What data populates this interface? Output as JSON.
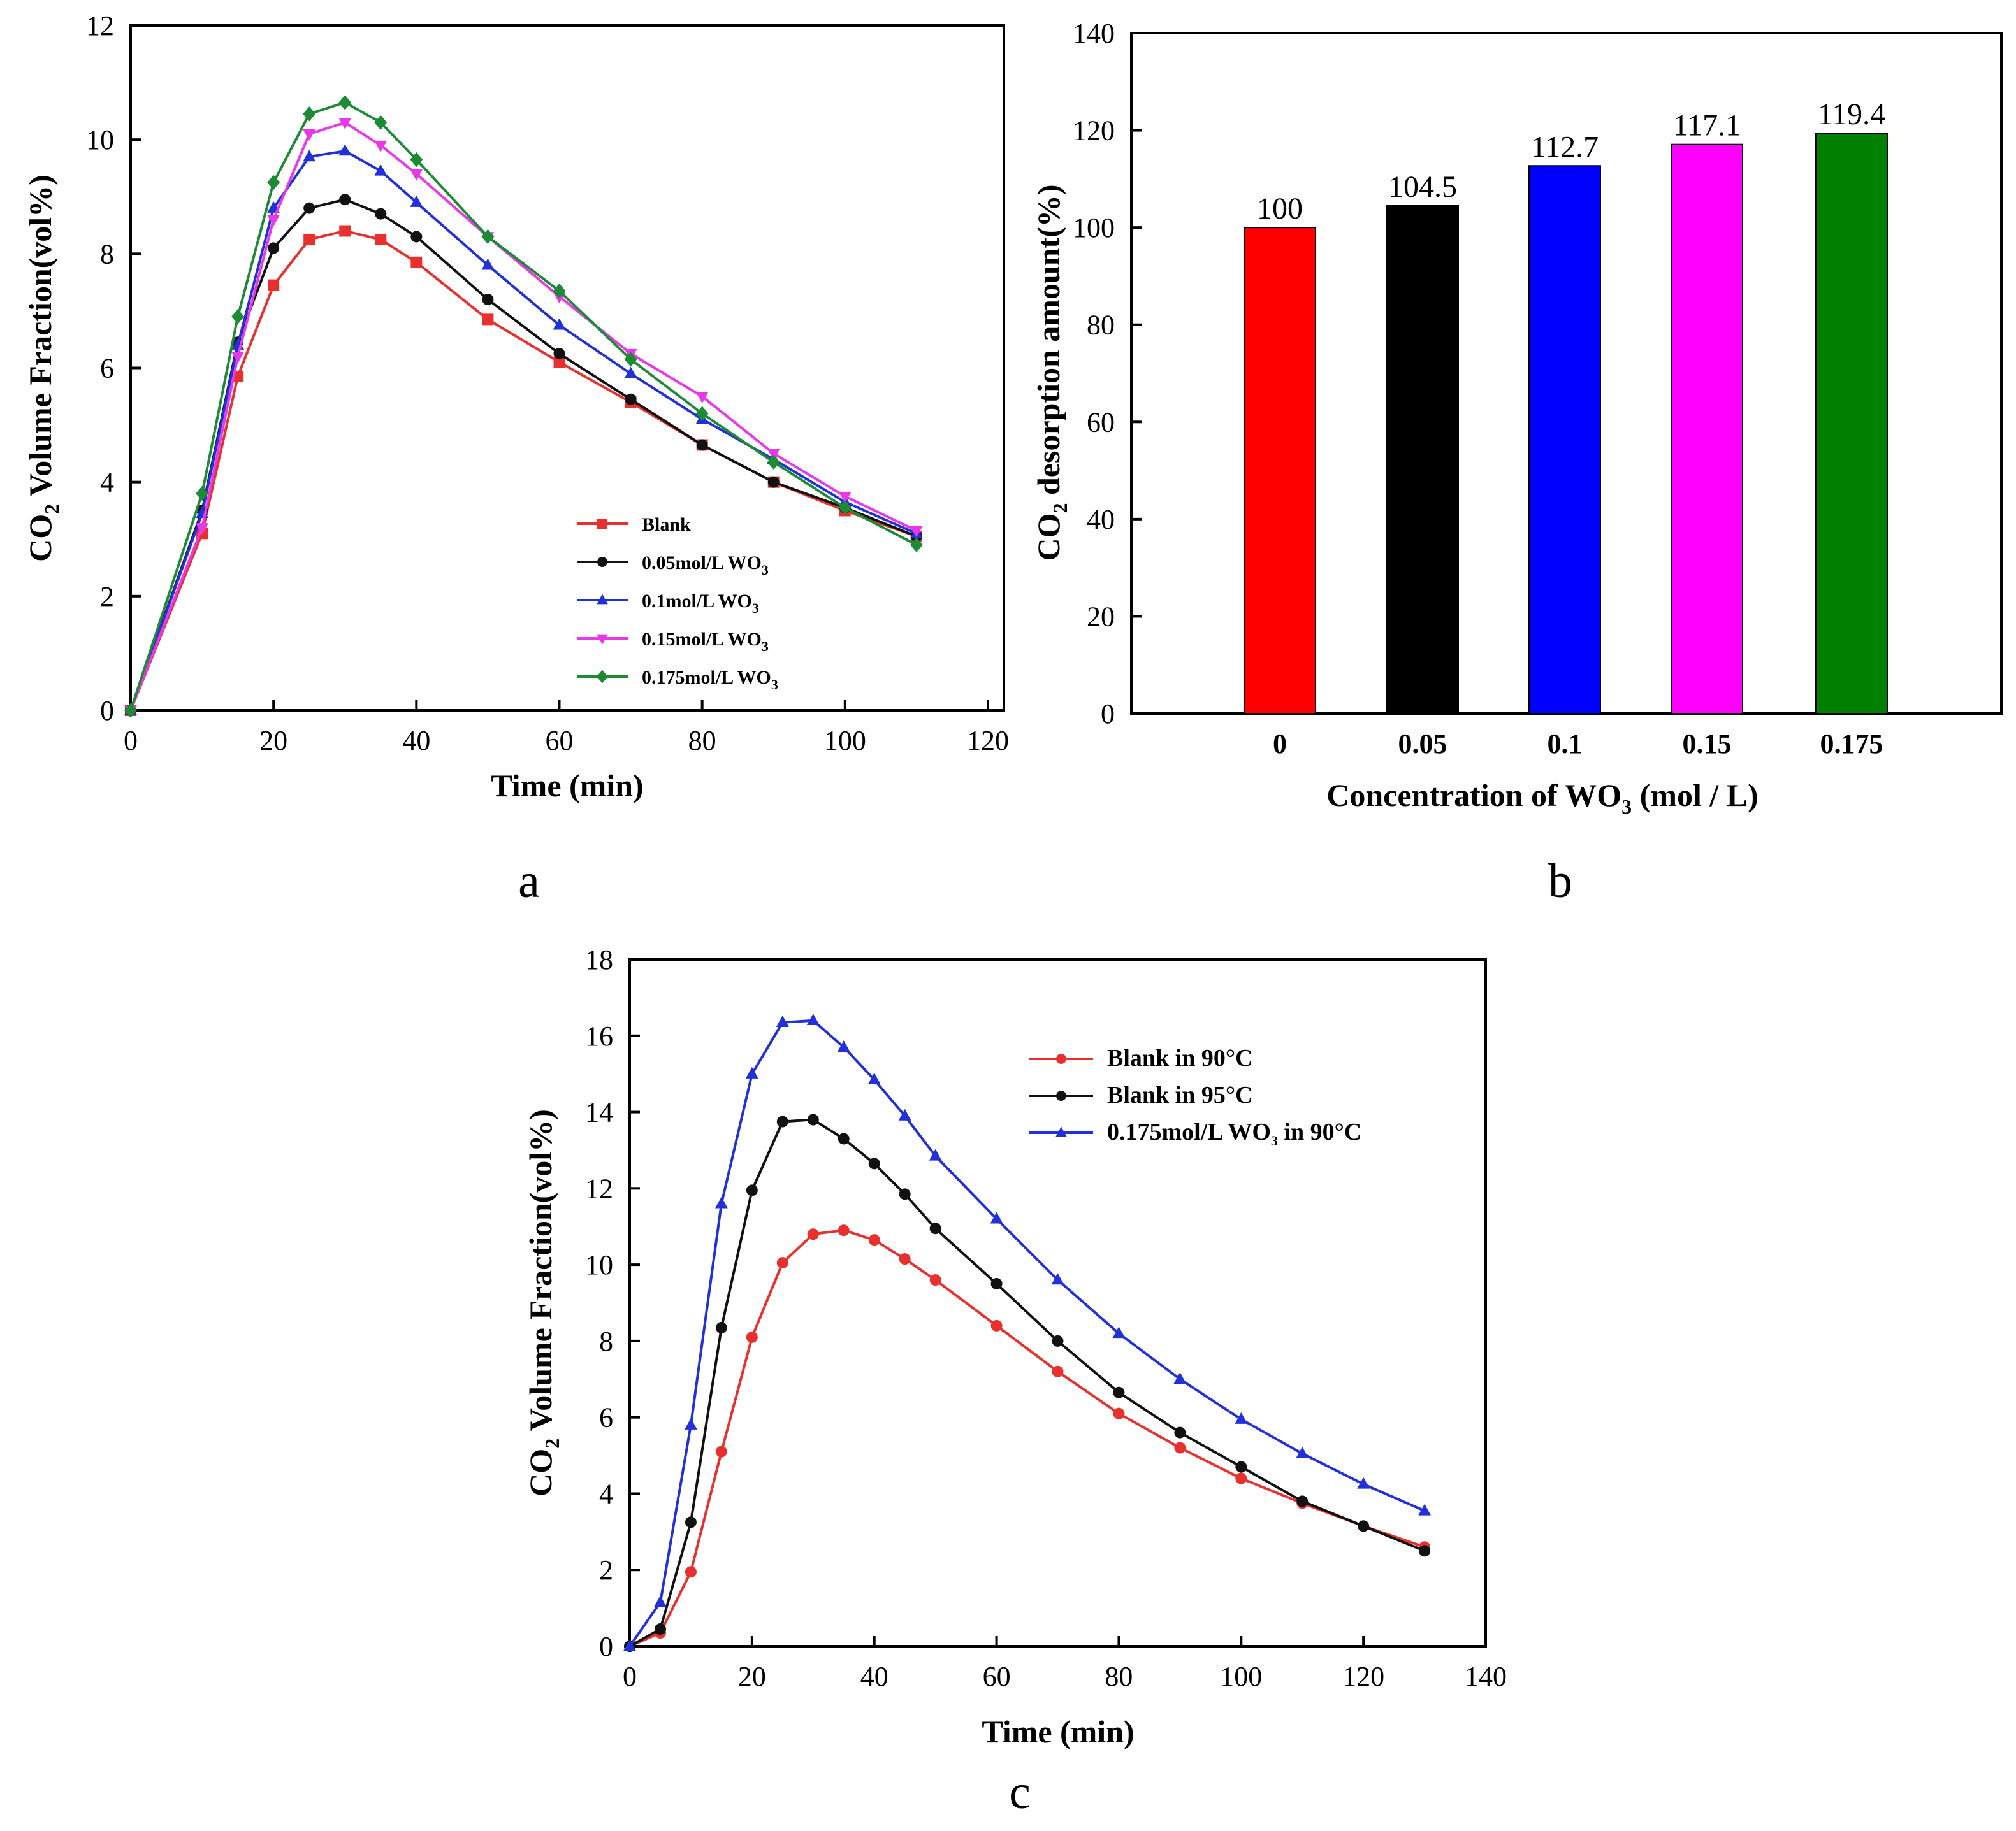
{
  "panel_labels": [
    "a",
    "b",
    "c"
  ],
  "chart_data": [
    {
      "id": "a",
      "type": "line",
      "title": "",
      "xlabel": "Time (min)",
      "ylabel_prefix": "CO",
      "ylabel_sub": "2",
      "ylabel_suffix": " Volume Fraction(vol%)",
      "xlim": [
        0,
        120
      ],
      "ylim": [
        0,
        12
      ],
      "xticks": [
        0,
        20,
        40,
        60,
        80,
        100,
        120
      ],
      "yticks": [
        0,
        2,
        4,
        6,
        8,
        10,
        12
      ],
      "grid": false,
      "legend_position": "lower-right",
      "x": [
        0,
        10,
        15,
        20,
        25,
        30,
        35,
        40,
        50,
        60,
        70,
        80,
        90,
        100,
        110
      ],
      "series": [
        {
          "name": "Blank",
          "name_main": "Blank",
          "name_sub": "",
          "color": "#e8302e",
          "marker": "square",
          "values": [
            0,
            3.1,
            5.85,
            7.45,
            8.25,
            8.4,
            8.25,
            7.85,
            6.85,
            6.1,
            5.4,
            4.65,
            4.0,
            3.5,
            3.05
          ]
        },
        {
          "name": "0.05mol/L WO3",
          "name_main": "0.05mol/L WO",
          "name_sub": "3",
          "color": "#111111",
          "marker": "circle",
          "values": [
            0,
            3.5,
            6.45,
            8.1,
            8.8,
            8.95,
            8.7,
            8.3,
            7.2,
            6.25,
            5.45,
            4.65,
            4.0,
            3.55,
            3.05
          ]
        },
        {
          "name": "0.1mol/L WO3",
          "name_main": "0.1mol/L WO",
          "name_sub": "3",
          "color": "#2130d8",
          "marker": "triangle-up",
          "values": [
            0,
            3.45,
            6.4,
            8.8,
            9.7,
            9.8,
            9.45,
            8.9,
            7.8,
            6.75,
            5.9,
            5.1,
            4.4,
            3.65,
            3.1
          ]
        },
        {
          "name": "0.15mol/L WO3",
          "name_main": "0.15mol/L WO",
          "name_sub": "3",
          "color": "#e838e8",
          "marker": "triangle-down",
          "values": [
            0,
            3.2,
            6.2,
            8.6,
            10.1,
            10.3,
            9.9,
            9.4,
            8.3,
            7.25,
            6.25,
            5.5,
            4.5,
            3.75,
            3.15
          ]
        },
        {
          "name": "0.175mol/L WO3",
          "name_main": "0.175mol/L WO",
          "name_sub": "3",
          "color": "#1d8a35",
          "marker": "diamond",
          "values": [
            0,
            3.8,
            6.9,
            9.25,
            10.45,
            10.65,
            10.3,
            9.65,
            8.3,
            7.35,
            6.15,
            5.2,
            4.35,
            3.55,
            2.9
          ]
        }
      ]
    },
    {
      "id": "b",
      "type": "bar",
      "title": "",
      "xlabel_prefix": "Concentration of WO",
      "xlabel_sub": "3",
      "xlabel_suffix": " (mol / L)",
      "ylabel_prefix": "CO",
      "ylabel_sub": "2",
      "ylabel_suffix": " desorption amount(%)",
      "ylim": [
        0,
        140
      ],
      "yticks": [
        0,
        20,
        40,
        60,
        80,
        100,
        120,
        140
      ],
      "grid": false,
      "categories": [
        "0",
        "0.05",
        "0.1",
        "0.15",
        "0.175"
      ],
      "values": [
        100,
        104.5,
        112.7,
        117.1,
        119.4
      ],
      "value_labels": [
        "100",
        "104.5",
        "112.7",
        "117.1",
        "119.4"
      ],
      "colors": [
        "#ff0000",
        "#000000",
        "#0000ff",
        "#ff00ff",
        "#008000"
      ]
    },
    {
      "id": "c",
      "type": "line",
      "title": "",
      "xlabel": "Time (min)",
      "ylabel_prefix": "CO",
      "ylabel_sub": "2",
      "ylabel_suffix": " Volume Fraction(vol%)",
      "xlim": [
        0,
        140
      ],
      "ylim": [
        0,
        18
      ],
      "xticks": [
        0,
        20,
        40,
        60,
        80,
        100,
        120,
        140
      ],
      "yticks": [
        0,
        2,
        4,
        6,
        8,
        10,
        12,
        14,
        16,
        18
      ],
      "grid": false,
      "legend_position": "top-right",
      "x": [
        0,
        5,
        10,
        15,
        20,
        25,
        30,
        35,
        40,
        45,
        50,
        60,
        70,
        80,
        90,
        100,
        110,
        120,
        130
      ],
      "series": [
        {
          "name": "Blank in 90°C",
          "name_main": "Blank in 90°C",
          "name_sub": "",
          "name_tail": "",
          "color": "#e8302e",
          "marker": "circle",
          "values": [
            0,
            0.35,
            1.95,
            5.1,
            8.1,
            10.05,
            10.8,
            10.9,
            10.65,
            10.15,
            9.6,
            8.4,
            7.2,
            6.1,
            5.2,
            4.4,
            3.75,
            3.15,
            2.6
          ]
        },
        {
          "name": "Blank in 95°C",
          "name_main": "Blank in 95°C",
          "name_sub": "",
          "name_tail": "",
          "color": "#111111",
          "marker": "circle",
          "values": [
            0,
            0.45,
            3.25,
            8.35,
            11.95,
            13.75,
            13.8,
            13.3,
            12.65,
            11.85,
            10.95,
            9.5,
            8.0,
            6.65,
            5.6,
            4.7,
            3.8,
            3.15,
            2.5
          ]
        },
        {
          "name": "0.175mol/L WO3 in 90°C",
          "name_main": "0.175mol/L WO",
          "name_sub": "3",
          "name_tail": "  in 90°C",
          "color": "#2130d8",
          "marker": "triangle-up",
          "values": [
            0,
            1.15,
            5.8,
            11.6,
            15.0,
            16.35,
            16.4,
            15.7,
            14.85,
            13.9,
            12.85,
            11.2,
            9.6,
            8.2,
            7.0,
            5.95,
            5.05,
            4.25,
            3.55
          ]
        }
      ]
    }
  ]
}
